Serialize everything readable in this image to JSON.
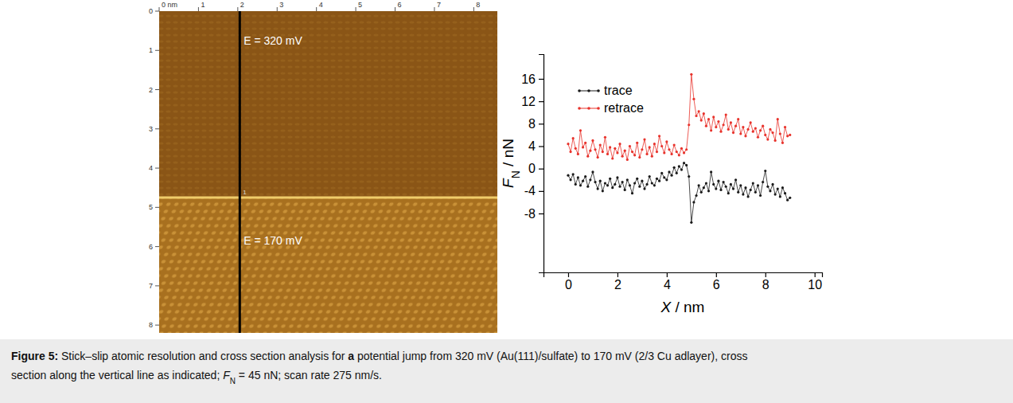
{
  "chart_data": {
    "type": "line",
    "xlabel": [
      "X",
      " / nm"
    ],
    "ylabel": [
      "F",
      "N",
      " / nN"
    ],
    "xlim": [
      -1,
      10.3
    ],
    "ylim": [
      -18.5,
      20.4
    ],
    "xticks": [
      0,
      2,
      4,
      6,
      8,
      10
    ],
    "yticks": [
      -8,
      -4,
      0,
      4,
      8,
      12,
      16
    ],
    "legend": "upper left",
    "grid": false,
    "x": [
      0,
      0.1,
      0.2,
      0.3,
      0.4,
      0.5,
      0.6,
      0.7,
      0.8,
      0.9,
      1,
      1.1,
      1.2,
      1.3,
      1.4,
      1.5,
      1.6,
      1.7,
      1.8,
      1.9,
      2,
      2.1,
      2.2,
      2.3,
      2.4,
      2.5,
      2.6,
      2.7,
      2.8,
      2.9,
      3,
      3.1,
      3.2,
      3.3,
      3.4,
      3.5,
      3.6,
      3.7,
      3.8,
      3.9,
      4,
      4.1,
      4.2,
      4.3,
      4.4,
      4.5,
      4.6,
      4.7,
      4.8,
      4.9,
      5,
      5.1,
      5.2,
      5.3,
      5.4,
      5.5,
      5.6,
      5.7,
      5.8,
      5.9,
      6,
      6.1,
      6.2,
      6.3,
      6.4,
      6.5,
      6.6,
      6.7,
      6.8,
      6.9,
      7,
      7.1,
      7.2,
      7.3,
      7.4,
      7.5,
      7.6,
      7.7,
      7.8,
      7.9,
      8,
      8.1,
      8.2,
      8.3,
      8.4,
      8.5,
      8.6,
      8.7,
      8.8,
      8.9,
      9
    ],
    "series": [
      {
        "name": "trace",
        "color": "#1a1a1a",
        "marker": "circle",
        "line_style": "solid",
        "values": [
          -1.2,
          -2.0,
          -1.0,
          -2.8,
          -1.6,
          -3.0,
          -2.2,
          -1.4,
          -3.2,
          -2.0,
          -0.6,
          -2.4,
          -3.6,
          -2.2,
          -4.0,
          -2.6,
          -3.0,
          -1.8,
          -3.4,
          -2.8,
          -1.6,
          -3.2,
          -2.4,
          -3.8,
          -2.0,
          -3.0,
          -4.4,
          -2.6,
          -1.8,
          -3.2,
          -2.2,
          -3.6,
          -2.8,
          -1.4,
          -2.6,
          -3.0,
          -1.8,
          -2.2,
          -0.8,
          -1.6,
          -2.0,
          -0.6,
          -1.2,
          0.2,
          -0.8,
          0.4,
          -0.2,
          1.0,
          0.6,
          -1.4,
          -9.6,
          -6.0,
          -4.8,
          -3.0,
          -4.2,
          -3.4,
          -2.6,
          -4.0,
          -0.6,
          -2.8,
          -3.6,
          -2.2,
          -3.8,
          -2.4,
          -3.2,
          -4.4,
          -2.8,
          -3.6,
          -2.0,
          -4.2,
          -3.0,
          -4.6,
          -3.4,
          -5.0,
          -3.8,
          -2.6,
          -4.2,
          -3.0,
          -4.8,
          -2.4,
          -0.4,
          -3.2,
          -4.0,
          -2.8,
          -4.6,
          -3.6,
          -5.0,
          -3.4,
          -4.4,
          -5.6,
          -5.2
        ]
      },
      {
        "name": "retrace",
        "color": "#e8322b",
        "marker": "circle",
        "line_style": "solid",
        "values": [
          4.4,
          3.0,
          5.4,
          3.6,
          2.6,
          6.8,
          3.8,
          4.6,
          2.2,
          3.2,
          5.0,
          3.4,
          2.0,
          4.2,
          3.0,
          5.6,
          2.6,
          3.8,
          1.8,
          3.6,
          2.8,
          4.4,
          2.2,
          3.2,
          1.6,
          4.0,
          3.0,
          2.4,
          4.6,
          2.0,
          3.4,
          5.2,
          2.6,
          3.8,
          2.2,
          4.4,
          3.0,
          5.8,
          4.0,
          2.8,
          4.8,
          3.4,
          2.6,
          4.2,
          3.0,
          2.4,
          3.6,
          2.8,
          3.4,
          7.8,
          16.8,
          12.4,
          9.4,
          10.2,
          8.6,
          9.8,
          7.6,
          8.8,
          6.8,
          9.2,
          7.4,
          8.4,
          6.6,
          7.8,
          9.6,
          7.0,
          8.2,
          6.4,
          7.6,
          8.8,
          6.2,
          7.4,
          5.8,
          7.0,
          8.2,
          6.6,
          7.2,
          5.6,
          6.8,
          7.6,
          6.0,
          5.2,
          7.0,
          6.4,
          5.0,
          8.8,
          6.2,
          4.6,
          7.4,
          5.8,
          6.0
        ]
      }
    ]
  },
  "afm_image": {
    "xlim": [
      0,
      8.6
    ],
    "ylim": [
      0,
      8.2
    ],
    "xticks": [
      {
        "value": 0,
        "label": "0 nm"
      },
      1,
      2,
      3,
      4,
      5,
      6,
      7,
      8
    ],
    "yticks": [
      0,
      1,
      2,
      3,
      4,
      5,
      6,
      7,
      8
    ],
    "potential_step_y": 4.75,
    "cross_section_x": 2.05,
    "cross_section_label": "1",
    "annotations": [
      {
        "text": "E = 320 mV"
      },
      {
        "text": "E = 170 mV"
      }
    ]
  },
  "caption": {
    "lines": [
      [
        {
          "text": "Figure 5:",
          "style": "bold"
        },
        {
          "text": " Stick–slip atomic resolution and cross section analysis for ",
          "style": "normal"
        },
        {
          "text": "a",
          "style": "bold"
        },
        {
          "text": " potential jump from 320 mV (Au(111)/sulfate) to 170 mV (2/3 Cu adlayer), cross",
          "style": "normal"
        }
      ],
      [
        {
          "text": "section along the vertical line as indicated; ",
          "style": "normal"
        },
        {
          "text": "F",
          "style": "italic"
        },
        {
          "text": "N",
          "style": "sub"
        },
        {
          "text": " = 45 nN; scan rate 275 nm/s.",
          "style": "normal"
        }
      ]
    ]
  }
}
